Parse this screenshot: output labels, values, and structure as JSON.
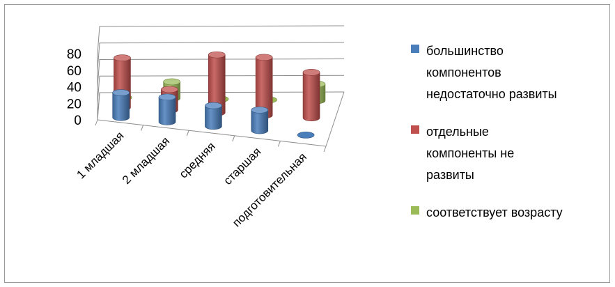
{
  "chart_data": {
    "type": "bar",
    "style": "3d-cylinder",
    "categories": [
      "1 младшая",
      "2 младшая",
      "средняя",
      "старшая",
      "подготовительная"
    ],
    "series": [
      {
        "name": "большинство компонентов недостаточно развиты",
        "color": "#4a7ebb",
        "values": [
          30,
          30,
          25,
          25,
          0
        ]
      },
      {
        "name": "отдельные компоненты не развиты",
        "color": "#c0504d",
        "values": [
          60,
          25,
          70,
          70,
          55
        ]
      },
      {
        "name": "соответствует возрасту",
        "color": "#9bbb59",
        "values": [
          0,
          20,
          0,
          0,
          20
        ]
      }
    ],
    "yticks": [
      "0",
      "20",
      "40",
      "60",
      "80"
    ],
    "ylim": [
      0,
      80
    ],
    "grid": true,
    "legend_position": "right"
  },
  "legend": {
    "items": [
      {
        "lines": [
          "большинство",
          "компонентов",
          "недостаточно развиты"
        ],
        "color": "#4a7ebb"
      },
      {
        "lines": [
          "отдельные",
          "компоненты не",
          "развиты"
        ],
        "color": "#c0504d"
      },
      {
        "lines": [
          "соответствует возрасту"
        ],
        "color": "#9bbb59"
      }
    ]
  }
}
